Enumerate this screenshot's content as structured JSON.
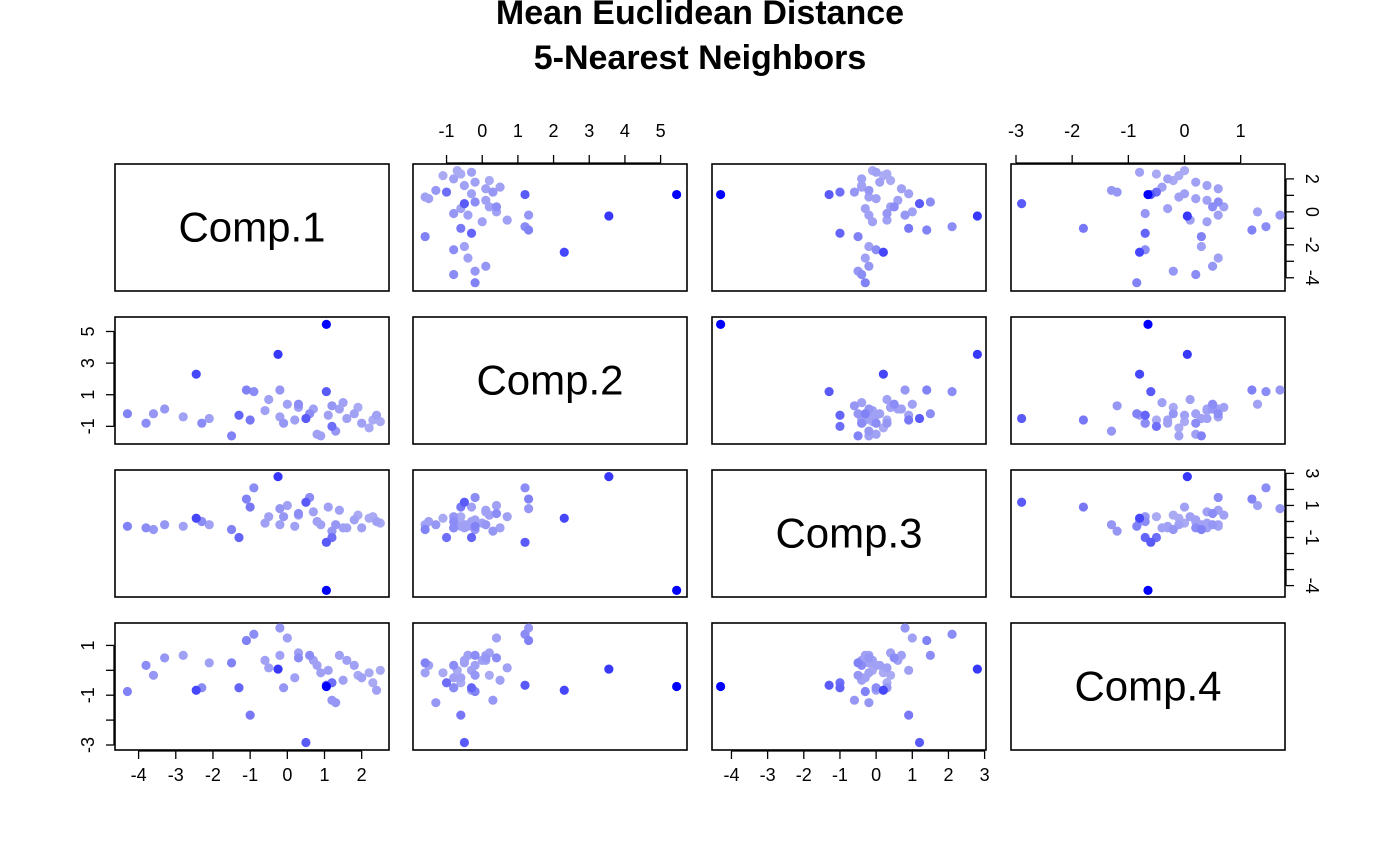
{
  "chart_data": {
    "type": "scatter",
    "subtype": "scatterplot-matrix",
    "title": "Mean Euclidean Distance",
    "subtitle": "5-Nearest Neighbors",
    "variables": [
      "Comp.1",
      "Comp.2",
      "Comp.3",
      "Comp.4"
    ],
    "color_scale": {
      "low": "#c8c8f2",
      "high": "#0000ff",
      "meaning": "higher mean 5-NN distance = more saturated blue"
    },
    "axes": {
      "Comp.1": {
        "range": [
          -4.5,
          2.6
        ],
        "ticks": [
          -4,
          -3,
          -2,
          -1,
          0,
          1,
          2
        ]
      },
      "Comp.2": {
        "range": [
          -1.8,
          5.6
        ],
        "ticks": [
          -1,
          0,
          1,
          2,
          3,
          4,
          5
        ],
        "ticks_left": [
          -1,
          1,
          3,
          5
        ]
      },
      "Comp.3": {
        "range": [
          -4.4,
          2.9
        ],
        "ticks": [
          -4,
          -3,
          -2,
          -1,
          0,
          1,
          2,
          3
        ],
        "ticks_right": [
          -4,
          -3,
          -2,
          -1,
          0,
          1,
          2,
          3
        ],
        "labels_right": [
          "-4",
          "",
          "",
          "-1",
          "",
          "1",
          "",
          "3"
        ]
      },
      "Comp.4": {
        "range": [
          -3.0,
          1.7
        ],
        "ticks": [
          -3,
          -2,
          -1,
          0,
          1
        ],
        "ticks_left": [
          -3,
          -2,
          -1,
          0,
          1
        ],
        "labels_left": [
          "-3",
          "",
          "-1",
          "",
          "1"
        ]
      }
    },
    "tick_sides": {
      "top": [
        "Comp.2",
        "Comp.4"
      ],
      "bottom": [
        "Comp.1",
        "Comp.3"
      ],
      "left": [
        "Comp.2",
        "Comp.4"
      ],
      "right": [
        "Comp.1",
        "Comp.3"
      ]
    },
    "points": [
      {
        "c1": 1.05,
        "c2": 5.45,
        "c3": -4.3,
        "c4": -0.65,
        "d": 1.0
      },
      {
        "c1": -0.25,
        "c2": 3.55,
        "c3": 2.8,
        "c4": 0.05,
        "d": 0.72
      },
      {
        "c1": -2.45,
        "c2": 2.3,
        "c3": 0.2,
        "c4": -0.8,
        "d": 0.65
      },
      {
        "c1": 0.5,
        "c2": -0.5,
        "c3": 1.2,
        "c4": -2.9,
        "d": 0.55
      },
      {
        "c1": -4.3,
        "c2": -0.2,
        "c3": -0.3,
        "c4": -0.85,
        "d": 0.35
      },
      {
        "c1": -0.9,
        "c2": 1.2,
        "c3": 2.1,
        "c4": 1.45,
        "d": 0.3
      },
      {
        "c1": 1.05,
        "c2": 1.2,
        "c3": -1.3,
        "c4": -0.6,
        "d": 0.55
      },
      {
        "c1": -1.3,
        "c2": -0.3,
        "c3": -1.0,
        "c4": -0.7,
        "d": 0.5
      },
      {
        "c1": 0.3,
        "c2": 0.4,
        "c3": 0.5,
        "c4": 0.5,
        "d": 0.3
      },
      {
        "c1": -1.1,
        "c2": 1.3,
        "c3": 1.4,
        "c4": 1.2,
        "d": 0.35
      },
      {
        "c1": 1.2,
        "c2": -1.0,
        "c3": -1.0,
        "c4": -0.5,
        "d": 0.45
      },
      {
        "c1": 2.2,
        "c2": -1.1,
        "c3": 0.2,
        "c4": -0.1,
        "d": 0.15
      },
      {
        "c1": -0.2,
        "c2": -0.4,
        "c3": -0.2,
        "c4": 0.6,
        "d": 0.2
      },
      {
        "c1": 0.8,
        "c2": -1.5,
        "c3": 0.0,
        "c4": 0.2,
        "d": 0.2
      },
      {
        "c1": -1.0,
        "c2": -0.6,
        "c3": 0.9,
        "c4": -1.8,
        "d": 0.4
      },
      {
        "c1": -3.8,
        "c2": -0.8,
        "c3": -0.4,
        "c4": 0.2,
        "d": 0.3
      },
      {
        "c1": -3.6,
        "c2": -0.2,
        "c3": -0.5,
        "c4": -0.2,
        "d": 0.25
      },
      {
        "c1": -3.3,
        "c2": 0.1,
        "c3": -0.2,
        "c4": 0.5,
        "d": 0.25
      },
      {
        "c1": -2.8,
        "c2": -0.4,
        "c3": -0.3,
        "c4": 0.6,
        "d": 0.2
      },
      {
        "c1": -2.3,
        "c2": -0.8,
        "c3": 0.0,
        "c4": -0.7,
        "d": 0.3
      },
      {
        "c1": -2.1,
        "c2": -0.5,
        "c3": -0.2,
        "c4": 0.3,
        "d": 0.2
      },
      {
        "c1": -1.5,
        "c2": -1.6,
        "c3": -0.5,
        "c4": 0.3,
        "d": 0.35
      },
      {
        "c1": -0.5,
        "c2": 0.7,
        "c3": 0.3,
        "c4": 0.1,
        "d": 0.2
      },
      {
        "c1": -0.2,
        "c2": 1.3,
        "c3": 0.8,
        "c4": 1.7,
        "d": 0.25
      },
      {
        "c1": 0.0,
        "c2": 0.4,
        "c3": 1.0,
        "c4": 1.3,
        "d": 0.2
      },
      {
        "c1": 0.3,
        "c2": 0.2,
        "c3": 0.4,
        "c4": 0.7,
        "d": 0.2
      },
      {
        "c1": 0.6,
        "c2": -0.2,
        "c3": 1.5,
        "c4": 0.6,
        "d": 0.3
      },
      {
        "c1": 0.7,
        "c2": 0.1,
        "c3": 0.6,
        "c4": 0.4,
        "d": 0.2
      },
      {
        "c1": 1.1,
        "c2": -0.3,
        "c3": 0.9,
        "c4": 0.0,
        "d": 0.2
      },
      {
        "c1": 1.4,
        "c2": 0.1,
        "c3": 0.7,
        "c4": 0.6,
        "d": 0.2
      },
      {
        "c1": 1.6,
        "c2": -0.5,
        "c3": -0.4,
        "c4": 0.4,
        "d": 0.2
      },
      {
        "c1": 1.8,
        "c2": -0.2,
        "c3": 0.1,
        "c4": 0.2,
        "d": 0.2
      },
      {
        "c1": 2.0,
        "c2": -0.8,
        "c3": -0.4,
        "c4": -0.3,
        "d": 0.2
      },
      {
        "c1": 2.3,
        "c2": -0.6,
        "c3": 0.3,
        "c4": -0.5,
        "d": 0.15
      },
      {
        "c1": 2.5,
        "c2": -0.7,
        "c3": -0.1,
        "c4": 0.0,
        "d": 0.15
      },
      {
        "c1": 1.3,
        "c2": -1.3,
        "c3": -0.2,
        "c4": -1.3,
        "d": 0.25
      },
      {
        "c1": 1.5,
        "c2": 0.5,
        "c3": -0.4,
        "c4": -0.4,
        "d": 0.2
      },
      {
        "c1": -0.1,
        "c2": -0.8,
        "c3": 0.3,
        "c4": -0.7,
        "d": 0.25
      },
      {
        "c1": 0.9,
        "c2": -1.6,
        "c3": -0.2,
        "c4": -0.1,
        "d": 0.2
      },
      {
        "c1": -0.6,
        "c2": 0.0,
        "c3": -0.1,
        "c4": 0.4,
        "d": 0.2
      },
      {
        "c1": 0.2,
        "c2": -0.6,
        "c3": -0.3,
        "c4": -0.3,
        "d": 0.2
      },
      {
        "c1": 1.9,
        "c2": 0.2,
        "c3": 0.4,
        "c4": -0.2,
        "d": 0.15
      },
      {
        "c1": 2.4,
        "c2": -0.3,
        "c3": 0.0,
        "c4": -0.8,
        "d": 0.2
      },
      {
        "c1": 1.2,
        "c2": 0.3,
        "c3": -0.6,
        "c4": -1.2,
        "d": 0.25
      }
    ]
  }
}
